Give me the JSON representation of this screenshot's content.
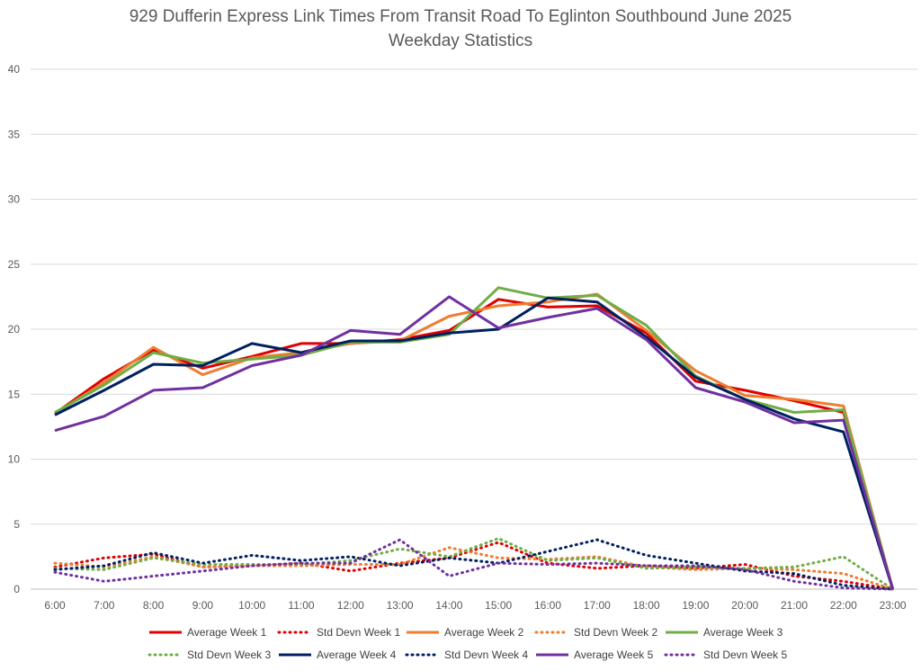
{
  "chart_data": {
    "type": "line",
    "title": "929 Dufferin Express Link Times From Transit Road To Eglinton Southbound June 2025",
    "subtitle": "Weekday Statistics",
    "xlabel": "",
    "ylabel": "",
    "ylim": [
      0,
      40
    ],
    "yticks": [
      "0",
      "5",
      "10",
      "15",
      "20",
      "25",
      "30",
      "35",
      "40"
    ],
    "categories": [
      "6:00",
      "7:00",
      "8:00",
      "9:00",
      "10:00",
      "11:00",
      "12:00",
      "13:00",
      "14:00",
      "15:00",
      "16:00",
      "17:00",
      "18:00",
      "19:00",
      "20:00",
      "21:00",
      "22:00",
      "23:00"
    ],
    "grid": true,
    "legend_position": "bottom",
    "series": [
      {
        "name": "Average Week 1",
        "color": "#e00000",
        "style": "solid",
        "values": [
          13.5,
          16.2,
          18.4,
          17.0,
          17.9,
          18.9,
          18.9,
          19.2,
          19.9,
          22.3,
          21.7,
          21.8,
          19.7,
          16.0,
          15.3,
          14.5,
          13.6,
          0
        ]
      },
      {
        "name": "Std Devn Week 1",
        "color": "#e00000",
        "style": "dotted",
        "values": [
          1.7,
          2.4,
          2.7,
          1.7,
          1.8,
          2.0,
          1.4,
          2.0,
          2.4,
          3.6,
          2.0,
          1.6,
          1.8,
          1.6,
          1.9,
          1.0,
          0.6,
          0
        ]
      },
      {
        "name": "Average Week 2",
        "color": "#ed7d31",
        "style": "solid",
        "values": [
          13.5,
          15.9,
          18.6,
          16.5,
          17.8,
          18.2,
          18.9,
          19.1,
          21.0,
          21.8,
          22.1,
          22.7,
          19.9,
          16.8,
          14.9,
          14.6,
          14.1,
          0
        ]
      },
      {
        "name": "Std Devn Week 2",
        "color": "#ed7d31",
        "style": "dotted",
        "values": [
          2.0,
          1.7,
          2.5,
          1.7,
          1.8,
          1.8,
          1.9,
          1.9,
          3.2,
          2.4,
          2.3,
          2.5,
          1.7,
          1.5,
          1.6,
          1.5,
          1.2,
          0
        ]
      },
      {
        "name": "Average Week 3",
        "color": "#70ad47",
        "style": "solid",
        "values": [
          13.6,
          15.7,
          18.2,
          17.4,
          17.7,
          18.0,
          19.0,
          19.0,
          19.6,
          23.2,
          22.4,
          22.6,
          20.3,
          16.4,
          14.6,
          13.6,
          13.8,
          0
        ]
      },
      {
        "name": "Std Devn Week 3",
        "color": "#70ad47",
        "style": "dotted",
        "values": [
          1.6,
          1.5,
          2.4,
          1.9,
          1.9,
          1.9,
          2.2,
          3.1,
          2.5,
          3.9,
          2.2,
          2.4,
          1.6,
          1.7,
          1.6,
          1.7,
          2.5,
          0
        ]
      },
      {
        "name": "Average Week 4",
        "color": "#002060",
        "style": "solid",
        "values": [
          13.4,
          15.3,
          17.3,
          17.2,
          18.9,
          18.2,
          19.1,
          19.1,
          19.7,
          20.0,
          22.4,
          22.1,
          19.4,
          16.3,
          14.6,
          13.1,
          12.1,
          0
        ]
      },
      {
        "name": "Std Devn Week 4",
        "color": "#002060",
        "style": "dotted",
        "values": [
          1.5,
          1.8,
          2.8,
          2.0,
          2.6,
          2.2,
          2.5,
          1.8,
          2.4,
          2.0,
          2.9,
          3.8,
          2.6,
          2.0,
          1.4,
          1.2,
          0.3,
          0
        ]
      },
      {
        "name": "Average Week 5",
        "color": "#7030a0",
        "style": "solid",
        "values": [
          12.2,
          13.3,
          15.3,
          15.5,
          17.2,
          18.0,
          19.9,
          19.6,
          22.5,
          20.1,
          20.9,
          21.6,
          19.2,
          15.5,
          14.4,
          12.8,
          13.0,
          0
        ]
      },
      {
        "name": "Std Devn Week 5",
        "color": "#7030a0",
        "style": "dotted",
        "values": [
          1.3,
          0.6,
          1.0,
          1.4,
          1.8,
          2.0,
          2.0,
          3.8,
          1.0,
          2.0,
          1.9,
          2.0,
          1.8,
          1.8,
          1.5,
          0.6,
          0.1,
          0
        ]
      }
    ]
  }
}
